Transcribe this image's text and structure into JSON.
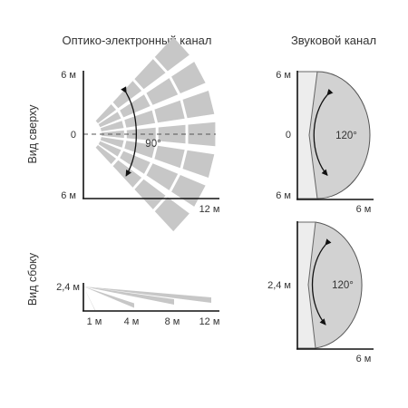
{
  "headers": {
    "optical": "Оптико-электронный канал",
    "sound": "Звуковой канал"
  },
  "side_labels": {
    "top": "Вид сверху",
    "side": "Вид сбоку"
  },
  "optical_top": {
    "y_top": "6 м",
    "y_mid": "0",
    "y_bottom": "6 м",
    "x_end": "12 м",
    "angle": "90°"
  },
  "sound_top": {
    "y_top": "6 м",
    "y_mid": "0",
    "y_bottom": "6 м",
    "x_end": "6 м",
    "angle": "120°"
  },
  "optical_side": {
    "height": "2,4 м",
    "x_ticks": [
      "1 м",
      "4 м",
      "8 м",
      "12 м"
    ]
  },
  "sound_side": {
    "height": "2,4 м",
    "x_end": "6 м",
    "angle": "120°"
  },
  "colors": {
    "beam": "#c7c7c7",
    "lobe": "#d2d2d2",
    "sensor_strip": "#ededed",
    "axis": "#111111"
  }
}
